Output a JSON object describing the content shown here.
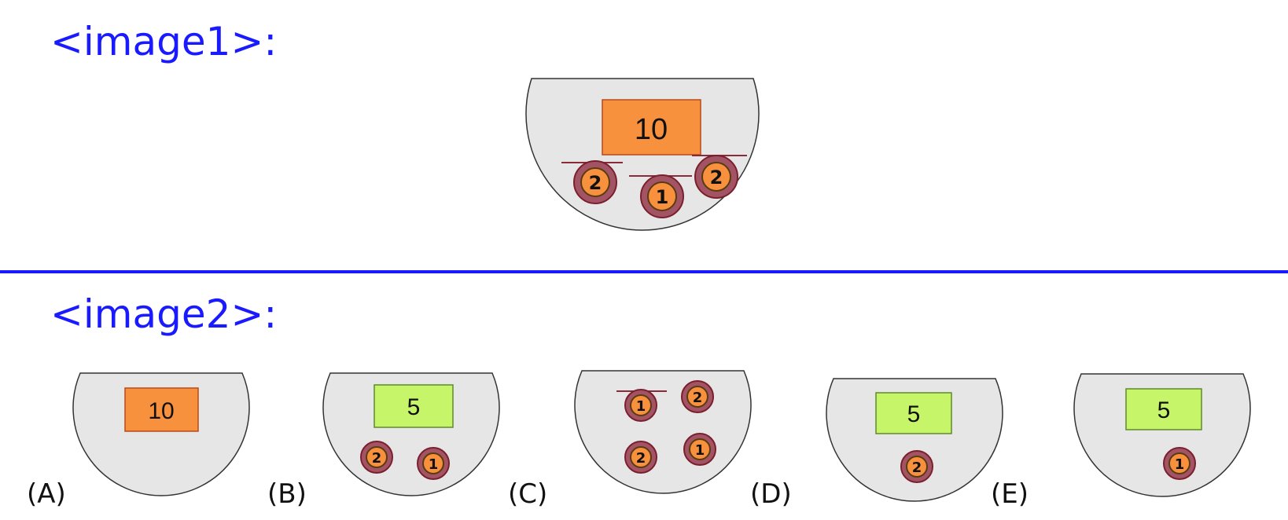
{
  "labels": {
    "image1": "<image1>:",
    "image2": "<image2>:"
  },
  "colors": {
    "accent_blue": "#1a1aff",
    "bowl_fill": "#e6e6e6",
    "orange": "#f7913d",
    "green": "#c6f56a",
    "coin_ring": "#8a2b3a"
  },
  "question": {
    "bowl": {
      "value": "10",
      "color": "orange",
      "coins": [
        "2",
        "1",
        "2"
      ]
    }
  },
  "options": [
    {
      "letter": "(A)",
      "value": "10",
      "color": "orange",
      "coins": []
    },
    {
      "letter": "(B)",
      "value": "5",
      "color": "green",
      "coins": [
        "2",
        "1"
      ]
    },
    {
      "letter": "(C)",
      "value": "",
      "color": "",
      "coins": [
        "1",
        "2",
        "2",
        "1"
      ]
    },
    {
      "letter": "(D)",
      "value": "5",
      "color": "green",
      "coins": [
        "2"
      ]
    },
    {
      "letter": "(E)",
      "value": "5",
      "color": "green",
      "coins": [
        "1"
      ]
    }
  ]
}
